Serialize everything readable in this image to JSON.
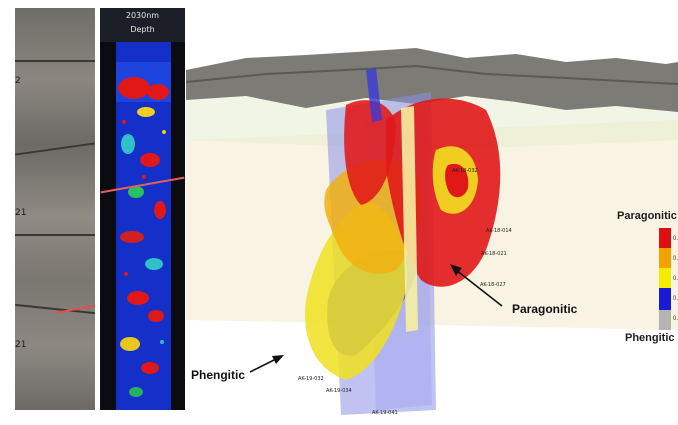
{
  "hyperspectral": {
    "header_line1": "2030nm",
    "header_line2": "Depth"
  },
  "core_ticks": [
    "2",
    "21",
    "21"
  ],
  "wells": [
    "AK-18-032",
    "AK-18-014",
    "AK-18-021",
    "AK-18-027",
    "AK-19-034",
    "AK-19-041",
    "AK-19-032"
  ],
  "legend": {
    "top_label": "Paragonitic",
    "bottom_label": "Phengitic",
    "ticks": [
      "0.",
      "0.",
      "0.",
      "0.",
      "0."
    ],
    "colors": {
      "paragonitic": "#e01010",
      "orange": "#f4a100",
      "yellow": "#f6ec00",
      "phengitic": "#1b1bd6",
      "low": "#b4b4b4"
    }
  },
  "annotations": {
    "paragonitic": "Paragonitic",
    "phengitic": "Phengitic"
  }
}
